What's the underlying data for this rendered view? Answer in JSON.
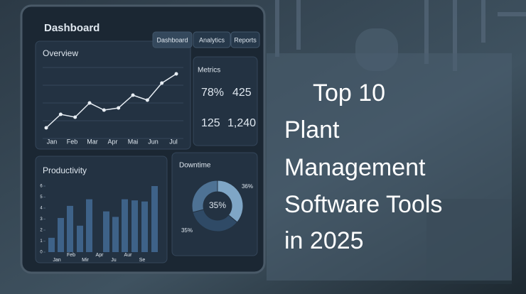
{
  "headline": [
    "Top 10",
    "Plant",
    "Management",
    "Software Tools",
    "in 2025"
  ],
  "dashboard": {
    "title": "Dashboard",
    "tabs": [
      "Dashboard",
      "Analytics",
      "Reports"
    ],
    "overview": {
      "title": "Overview",
      "x_labels": [
        "Jan",
        "Feb",
        "Mar",
        "Apr",
        "Mai",
        "Jun",
        "Jul"
      ],
      "values": [
        15,
        34,
        30,
        50,
        40,
        43,
        61,
        54,
        78,
        91
      ],
      "ylim": [
        0,
        100
      ],
      "color": "#e8eef4"
    },
    "metrics": {
      "title": "Metrics",
      "items": [
        "78%",
        "425",
        "125",
        "1,240"
      ]
    },
    "productivity": {
      "title": "Productivity",
      "x_labels": [
        "Jan",
        "Feb",
        "Mir",
        "Apr",
        "Ju",
        "Aur",
        "Se"
      ],
      "values": [
        1.3,
        3.1,
        4.2,
        2.4,
        4.8,
        3.7,
        3.2,
        4.8,
        4.7,
        4.6,
        6
      ],
      "ylim": [
        0,
        6
      ],
      "yticks": [
        0,
        1,
        2,
        3,
        4,
        5,
        6
      ],
      "color": "#3e6288"
    },
    "downtime": {
      "title": "Downtime",
      "center_label": "35%",
      "segments": [
        {
          "value": 36,
          "label": "36%",
          "color": "#7fa6c6"
        },
        {
          "value": 35,
          "label": "35%",
          "color": "#2f4a66"
        },
        {
          "value": 29,
          "color": "#4e7294"
        }
      ]
    }
  }
}
